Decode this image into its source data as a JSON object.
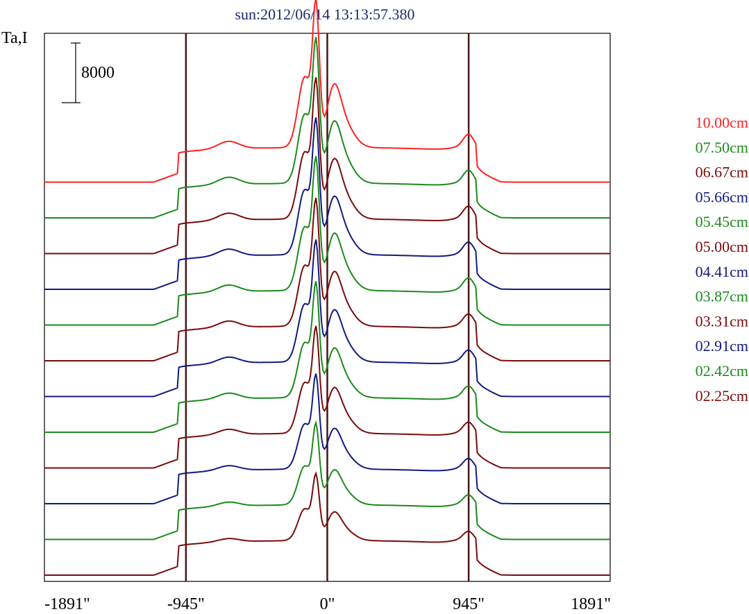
{
  "chart_data": {
    "type": "line",
    "title": "sun:2012/06/14 13:13:57.380",
    "ylabel": "Ta,I",
    "scale_bar_label": "8000",
    "x_ticks": [
      "-1891\"",
      "-945\"",
      "0\"",
      "945\"",
      "1891\""
    ],
    "x_tick_values": [
      -1891,
      -945,
      0,
      945,
      1891
    ],
    "xlim": [
      -1891,
      1891
    ],
    "vertical_lines": [
      -945,
      0,
      945
    ],
    "grid": false,
    "legend_position": "right",
    "series": [
      {
        "name": "10.00cm",
        "color": "#ff2020",
        "offset": 11,
        "peak": 1.0
      },
      {
        "name": "07.50cm",
        "color": "#1a8a1a",
        "offset": 10,
        "peak": 0.98
      },
      {
        "name": "06.67cm",
        "color": "#7a0a0a",
        "offset": 9,
        "peak": 0.95
      },
      {
        "name": "05.66cm",
        "color": "#101a80",
        "offset": 8,
        "peak": 0.92
      },
      {
        "name": "05.45cm",
        "color": "#1a8a1a",
        "offset": 7,
        "peak": 0.9
      },
      {
        "name": "05.00cm",
        "color": "#7a0a0a",
        "offset": 6,
        "peak": 0.86
      },
      {
        "name": "04.41cm",
        "color": "#101a80",
        "offset": 5,
        "peak": 0.82
      },
      {
        "name": "03.87cm",
        "color": "#1a8a1a",
        "offset": 4,
        "peak": 0.78
      },
      {
        "name": "03.31cm",
        "color": "#7a0a0a",
        "offset": 3,
        "peak": 0.72
      },
      {
        "name": "02.91cm",
        "color": "#101a80",
        "offset": 2,
        "peak": 0.64
      },
      {
        "name": "02.42cm",
        "color": "#1a8a1a",
        "offset": 1,
        "peak": 0.55
      },
      {
        "name": "02.25cm",
        "color": "#7a0a0a",
        "offset": 0,
        "peak": 0.45
      }
    ]
  }
}
